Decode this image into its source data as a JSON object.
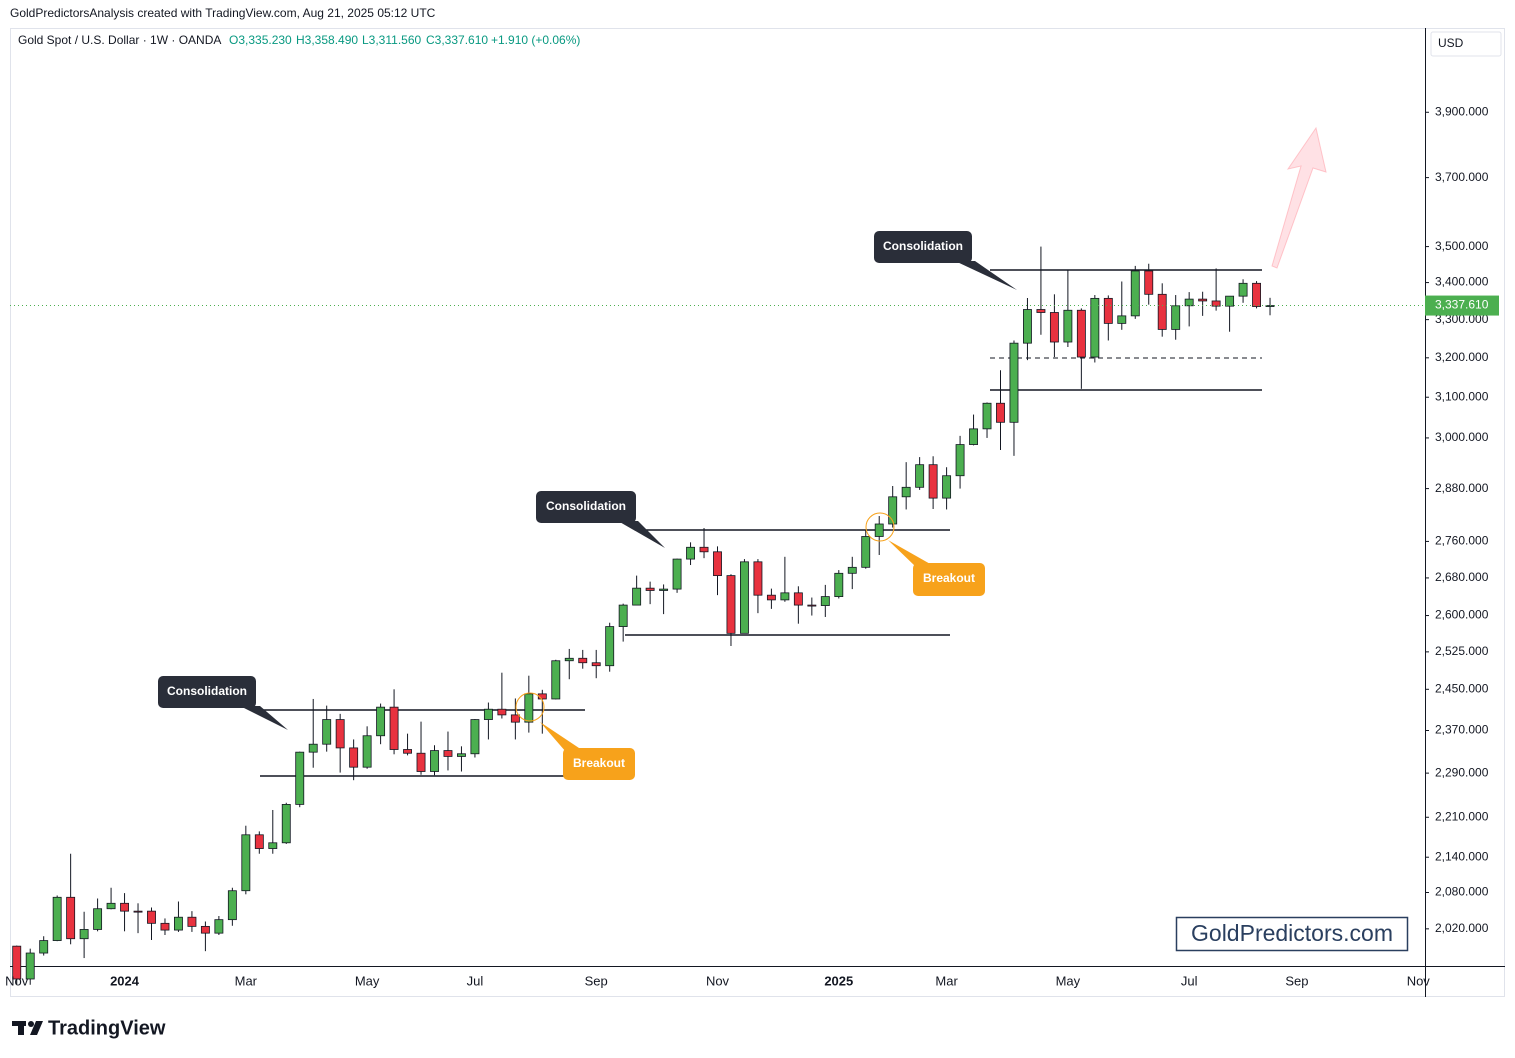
{
  "header": "GoldPredictorsAnalysis created with TradingView.com, Aug 21, 2025 05:12 UTC",
  "chart_data": {
    "type": "candlestick",
    "title": "Gold Spot / U.S. Dollar · 1W · OANDA",
    "ohlc_labels": [
      "O3,335.230",
      "H3,358.490",
      "L3,311.560",
      "C3,337.610",
      "+1.910 (+0.06%)"
    ],
    "currency": "USD",
    "log_scale": true,
    "grid": false,
    "up_color": "#4caf50",
    "down_color": "#e8323f",
    "categories": [
      "Nov",
      null,
      null,
      null,
      null,
      null,
      null,
      null,
      "2024",
      null,
      null,
      null,
      null,
      null,
      null,
      null,
      null,
      "Mar",
      null,
      null,
      null,
      null,
      null,
      null,
      null,
      null,
      "May",
      null,
      null,
      null,
      null,
      null,
      null,
      null,
      "Jul",
      null,
      null,
      null,
      null,
      null,
      null,
      null,
      null,
      "Sep",
      null,
      null,
      null,
      null,
      null,
      null,
      null,
      null,
      "Nov",
      null,
      null,
      null,
      null,
      null,
      null,
      null,
      null,
      "2025",
      null,
      null,
      null,
      null,
      null,
      null,
      null,
      "Mar",
      null,
      null,
      null,
      null,
      null,
      null,
      null,
      null,
      "May",
      null,
      null,
      null,
      null,
      null,
      null,
      null,
      null,
      "Jul",
      null,
      null,
      null,
      null,
      null,
      null,
      null,
      "Sep",
      null,
      null,
      null,
      null,
      null,
      null,
      null,
      null,
      "Nov"
    ],
    "open": [
      1992,
      1940,
      1981,
      2001,
      2072,
      2004,
      2019,
      2053,
      2062,
      2049,
      2049,
      2029,
      2018,
      2039,
      2024,
      2013,
      2035,
      2083,
      2179,
      2155,
      2165,
      2233,
      2329,
      2344,
      2391,
      2337,
      2301,
      2360,
      2415,
      2334,
      2327,
      2293,
      2332,
      2321,
      2326,
      2391,
      2411,
      2400,
      2386,
      2441,
      2431,
      2507,
      2512,
      2503,
      2497,
      2577,
      2622,
      2658,
      2653,
      2656,
      2721,
      2747,
      2737,
      2685,
      2563,
      2715,
      2643,
      2633,
      2648,
      2622,
      2621,
      2640,
      2690,
      2703,
      2771,
      2799,
      2861,
      2883,
      2936,
      2858,
      2910,
      2984,
      3022,
      3085,
      3038,
      3238,
      3327,
      3319,
      3241,
      3325,
      3202,
      3357,
      3290,
      3310,
      3432,
      3368,
      3274,
      3337,
      3355,
      3350,
      3336,
      3363,
      3398,
      3335.23,
      null,
      null,
      null,
      null,
      null,
      null,
      null,
      null,
      null,
      null,
      null
    ],
    "high": [
      1993,
      1988,
      2008,
      2075,
      2146,
      2048,
      2070,
      2088,
      2079,
      2062,
      2055,
      2037,
      2065,
      2049,
      2032,
      2041,
      2088,
      2195,
      2185,
      2223,
      2236,
      2330,
      2431,
      2418,
      2402,
      2353,
      2378,
      2422,
      2450,
      2364,
      2387,
      2342,
      2368,
      2340,
      2392,
      2424,
      2483,
      2432,
      2477,
      2449,
      2509,
      2531,
      2529,
      2529,
      2585,
      2625,
      2685,
      2672,
      2666,
      2722,
      2758,
      2790,
      2749,
      2688,
      2721,
      2721,
      2657,
      2726,
      2662,
      2638,
      2665,
      2697,
      2726,
      2786,
      2817,
      2886,
      2942,
      2954,
      2956,
      2930,
      3005,
      3057,
      3087,
      3168,
      3245,
      3358,
      3500,
      3368,
      3435,
      3330,
      3366,
      3365,
      3403,
      3446,
      3452,
      3398,
      3366,
      3374,
      3375,
      3439,
      3363,
      3409,
      3404,
      3358.49,
      null,
      null,
      null,
      null,
      null,
      null,
      null,
      null,
      null,
      null,
      null
    ],
    "low": [
      1932,
      1931,
      1977,
      2000,
      1995,
      1973,
      2016,
      2052,
      2016,
      2013,
      2002,
      2010,
      2015,
      2015,
      1984,
      2010,
      2025,
      2077,
      2146,
      2146,
      2163,
      2228,
      2300,
      2330,
      2291,
      2277,
      2298,
      2344,
      2325,
      2323,
      2287,
      2286,
      2295,
      2293,
      2319,
      2353,
      2393,
      2353,
      2366,
      2364,
      2430,
      2470,
      2491,
      2472,
      2485,
      2546,
      2622,
      2624,
      2603,
      2648,
      2708,
      2723,
      2643,
      2537,
      2563,
      2605,
      2614,
      2629,
      2583,
      2600,
      2597,
      2636,
      2656,
      2700,
      2730,
      2791,
      2832,
      2877,
      2833,
      2832,
      2880,
      2982,
      3000,
      2971,
      2957,
      3194,
      3260,
      3202,
      3228,
      3121,
      3188,
      3245,
      3273,
      3302,
      3340,
      3255,
      3247,
      3282,
      3310,
      3324,
      3268,
      3345,
      3330,
      3311.56,
      null,
      null,
      null,
      null,
      null,
      null,
      null,
      null,
      null,
      null,
      null
    ],
    "close": [
      1940,
      1981,
      2001,
      2072,
      2004,
      2019,
      2053,
      2062,
      2049,
      2048,
      2029,
      2018,
      2039,
      2024,
      2013,
      2035,
      2083,
      2179,
      2155,
      2165,
      2233,
      2329,
      2344,
      2391,
      2337,
      2301,
      2360,
      2415,
      2334,
      2327,
      2293,
      2332,
      2321,
      2326,
      2391,
      2411,
      2400,
      2386,
      2441,
      2431,
      2507,
      2512,
      2503,
      2497,
      2577,
      2622,
      2658,
      2653,
      2656,
      2721,
      2747,
      2737,
      2685,
      2563,
      2715,
      2643,
      2633,
      2648,
      2622,
      2621,
      2640,
      2690,
      2703,
      2771,
      2799,
      2861,
      2883,
      2936,
      2858,
      2910,
      2984,
      3022,
      3085,
      3038,
      3238,
      3327,
      3319,
      3241,
      3325,
      3202,
      3357,
      3290,
      3310,
      3432,
      3368,
      3274,
      3337,
      3355,
      3350,
      3336,
      3363,
      3398,
      3335,
      3337.61,
      null,
      null,
      null,
      null,
      null,
      null,
      null,
      null,
      null,
      null,
      null
    ],
    "ylim": [
      1962,
      4174
    ],
    "yticks": [
      {
        "value": 2020,
        "label": "2,020.000"
      },
      {
        "value": 2080,
        "label": "2,080.000"
      },
      {
        "value": 2140,
        "label": "2,140.000"
      },
      {
        "value": 2210,
        "label": "2,210.000"
      },
      {
        "value": 2290,
        "label": "2,290.000"
      },
      {
        "value": 2370,
        "label": "2,370.000"
      },
      {
        "value": 2450,
        "label": "2,450.000"
      },
      {
        "value": 2525,
        "label": "2,525.000"
      },
      {
        "value": 2600,
        "label": "2,600.000"
      },
      {
        "value": 2680,
        "label": "2,680.000"
      },
      {
        "value": 2760,
        "label": "2,760.000"
      },
      {
        "value": 2880,
        "label": "2,880.000"
      },
      {
        "value": 3000,
        "label": "3,000.000"
      },
      {
        "value": 3100,
        "label": "3,100.000"
      },
      {
        "value": 3200,
        "label": "3,200.000"
      },
      {
        "value": 3300,
        "label": "3,300.000"
      },
      {
        "value": 3400,
        "label": "3,400.000"
      },
      {
        "value": 3500,
        "label": "3,500.000"
      },
      {
        "value": 3700,
        "label": "3,700.000"
      },
      {
        "value": 3900,
        "label": "3,900.000"
      }
    ],
    "last_price": {
      "value": 3337.61,
      "label": "3,337.610"
    },
    "annotations": [
      "Consolidation",
      "Consolidation",
      "Consolidation",
      "Breakout",
      "Breakout"
    ],
    "watermark": "GoldPredictors.com"
  },
  "footer": "TradingView"
}
